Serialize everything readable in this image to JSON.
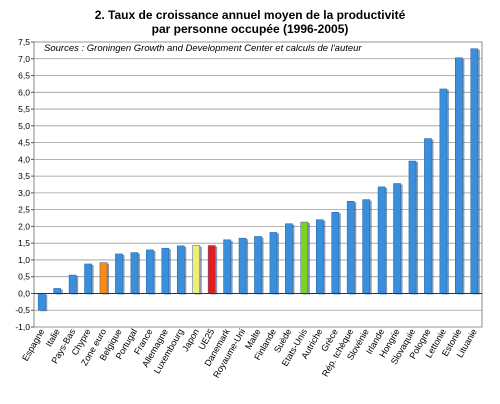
{
  "chart_data": {
    "type": "bar",
    "title": "2. Taux de croissance annuel moyen de la productivité",
    "subtitle": "par personne occupée (1996-2005)",
    "source": "Sources : Groningen Growth and Development Center et calculs de l'auteur",
    "categories": [
      "Espagne",
      "Italie",
      "Pays-Bas",
      "Chypre",
      "Zone euro",
      "Belgique",
      "Portugal",
      "France",
      "Allemagne",
      "Luxembourg",
      "Japon",
      "UE25",
      "Danemark",
      "Royaume-Uni",
      "Malte",
      "Finlande",
      "Suède",
      "Etats-Unis",
      "Autriche",
      "Grèce",
      "Rép. tchèque",
      "Slovénie",
      "Irlande",
      "Hongrie",
      "Slovaquie",
      "Pologne",
      "Lettonie",
      "Estonie",
      "Lituanie"
    ],
    "values": [
      -0.5,
      0.15,
      0.55,
      0.88,
      0.92,
      1.18,
      1.22,
      1.3,
      1.35,
      1.42,
      1.43,
      1.43,
      1.6,
      1.65,
      1.7,
      1.82,
      2.08,
      2.13,
      2.2,
      2.42,
      2.75,
      2.8,
      3.18,
      3.28,
      3.95,
      4.62,
      6.1,
      7.03,
      7.3
    ],
    "bar_colors": [
      "#3a8fdc",
      "#3a8fdc",
      "#3a8fdc",
      "#3a8fdc",
      "#ff8a10",
      "#3a8fdc",
      "#3a8fdc",
      "#3a8fdc",
      "#3a8fdc",
      "#3a8fdc",
      "#f4ee70",
      "#e51c1c",
      "#3a8fdc",
      "#3a8fdc",
      "#3a8fdc",
      "#3a8fdc",
      "#3a8fdc",
      "#7ed321",
      "#3a8fdc",
      "#3a8fdc",
      "#3a8fdc",
      "#3a8fdc",
      "#3a8fdc",
      "#3a8fdc",
      "#3a8fdc",
      "#3a8fdc",
      "#3a8fdc",
      "#3a8fdc",
      "#3a8fdc"
    ],
    "ylim": [
      -1.0,
      7.5
    ],
    "yticks": [
      "-1,0",
      "-0,5",
      "0,0",
      "0,5",
      "1,0",
      "1,5",
      "2,0",
      "2,5",
      "3,0",
      "3,5",
      "4,0",
      "4,5",
      "5,0",
      "5,5",
      "6,0",
      "6,5",
      "7,0",
      "7,5"
    ],
    "grid": true,
    "xlabel": "",
    "ylabel": ""
  }
}
